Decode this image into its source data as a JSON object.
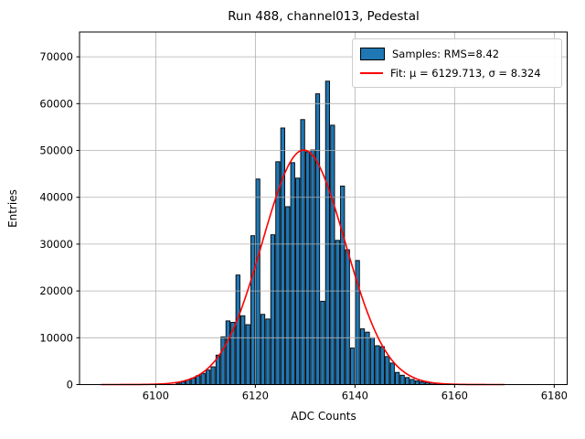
{
  "figure": {
    "title": "Run 488, channel013, Pedestal"
  },
  "chart_data": {
    "type": "bar",
    "subtype": "histogram",
    "title": "Run 488, channel013, Pedestal",
    "xlabel": "ADC Counts",
    "ylabel": "Entries",
    "xlim": [
      6084.7,
      6182.6
    ],
    "ylim": [
      0,
      75300
    ],
    "xticks": [
      6100,
      6120,
      6140,
      6160,
      6180
    ],
    "yticks": [
      0,
      10000,
      20000,
      30000,
      40000,
      50000,
      60000,
      70000
    ],
    "grid": true,
    "grid_color": "#b0b0b0",
    "bar_color": "#1f77b4",
    "bar_edge_color": "#000000",
    "bin_width": 1,
    "bin_start": 6104,
    "counts": [
      300,
      600,
      1000,
      1400,
      1900,
      2400,
      3100,
      3800,
      6300,
      10200,
      13600,
      13300,
      23400,
      14700,
      12800,
      31800,
      43900,
      15000,
      14000,
      32000,
      47600,
      54800,
      38000,
      47400,
      44100,
      56600,
      49700,
      50100,
      62100,
      17800,
      64800,
      55400,
      30800,
      42400,
      28800,
      7800,
      26500,
      11900,
      11200,
      10000,
      8300,
      8100,
      6000,
      4600,
      2600,
      2000,
      1500,
      1100,
      800,
      600,
      450,
      350,
      250,
      150
    ],
    "fit": {
      "mu": 6129.713,
      "sigma": 8.324,
      "amplitude": 50100,
      "x_range": [
        6089,
        6170
      ],
      "color": "#ff0000"
    },
    "legend": {
      "position": "upper right",
      "samples_label": "Samples: RMS=8.42",
      "fit_label": "Fit: μ = 6129.713, σ = 8.324"
    },
    "samples_rms": 8.42
  }
}
